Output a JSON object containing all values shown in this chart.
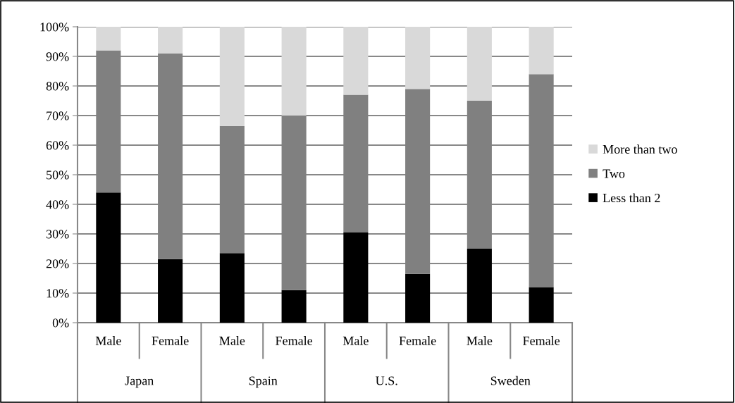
{
  "chart_data": {
    "type": "bar",
    "stacked": true,
    "categories": [
      "Male",
      "Female",
      "Male",
      "Female",
      "Male",
      "Female",
      "Male",
      "Female"
    ],
    "annotations": [
      "Japan",
      "Spain",
      "U.S.",
      "Sweden"
    ],
    "series": [
      {
        "name": "Less than 2",
        "color": "#000000",
        "values": [
          44,
          21.5,
          23.5,
          11,
          30.5,
          16.5,
          25,
          12
        ]
      },
      {
        "name": "Two",
        "color": "#808080",
        "values": [
          48,
          69.5,
          43,
          59,
          46.5,
          62.5,
          50,
          72
        ]
      },
      {
        "name": "More than two",
        "color": "#d9d9d9",
        "values": [
          8,
          9,
          33.5,
          30,
          23,
          21,
          25,
          16
        ]
      }
    ],
    "ylim": [
      0,
      100
    ],
    "yticks": [
      {
        "value": 0,
        "label": "0%"
      },
      {
        "value": 10,
        "label": "10%"
      },
      {
        "value": 20,
        "label": "20%"
      },
      {
        "value": 30,
        "label": "30%"
      },
      {
        "value": 40,
        "label": "40%"
      },
      {
        "value": 50,
        "label": "50%"
      },
      {
        "value": 60,
        "label": "60%"
      },
      {
        "value": 70,
        "label": "70%"
      },
      {
        "value": 80,
        "label": "80%"
      },
      {
        "value": 90,
        "label": "90%"
      },
      {
        "value": 100,
        "label": "100%"
      }
    ],
    "grid": "y",
    "legend": "right"
  }
}
